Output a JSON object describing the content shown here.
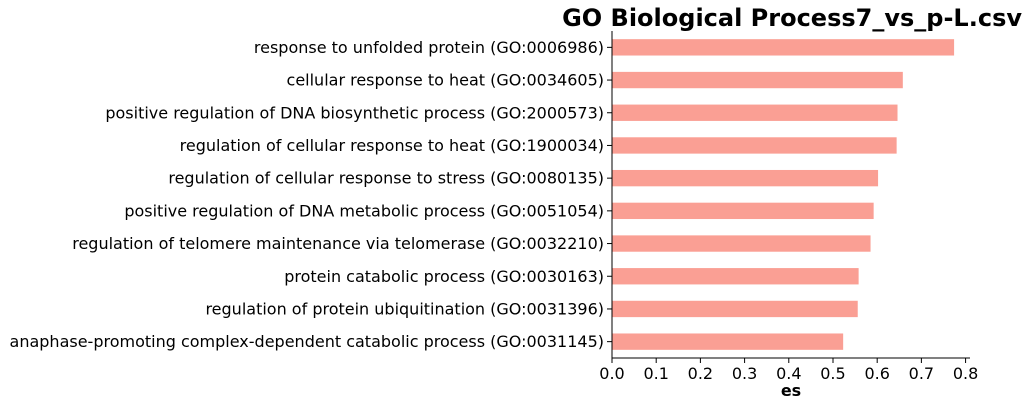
{
  "chart_data": {
    "type": "bar",
    "orientation": "horizontal",
    "title": "GO Biological Process7_vs_p-L.csv",
    "xlabel": "es",
    "ylabel": "",
    "xlim": [
      0,
      0.81
    ],
    "xticks": [
      0.0,
      0.1,
      0.2,
      0.3,
      0.4,
      0.5,
      0.6,
      0.7,
      0.8
    ],
    "xtick_labels": [
      "0.0",
      "0.1",
      "0.2",
      "0.3",
      "0.4",
      "0.5",
      "0.6",
      "0.7",
      "0.8"
    ],
    "grid": false,
    "bar_color": "#fa9f94",
    "categories": [
      "response to unfolded protein (GO:0006986)",
      "cellular response to heat (GO:0034605)",
      "positive regulation of DNA biosynthetic process (GO:2000573)",
      "regulation of cellular response to heat (GO:1900034)",
      "regulation of cellular response to stress (GO:0080135)",
      "positive regulation of DNA metabolic process (GO:0051054)",
      "regulation of telomere maintenance via telomerase (GO:0032210)",
      "protein catabolic process (GO:0030163)",
      "regulation of protein ubiquitination (GO:0031396)",
      "anaphase-promoting complex-dependent catabolic process (GO:0031145)"
    ],
    "values": [
      0.774,
      0.658,
      0.646,
      0.644,
      0.602,
      0.592,
      0.585,
      0.558,
      0.556,
      0.523
    ]
  }
}
